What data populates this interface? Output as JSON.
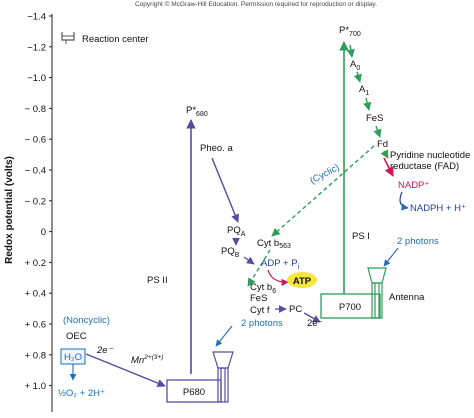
{
  "copyright": "Copyright © McGraw-Hill Education. Permission required for reproduction or display.",
  "legend": {
    "icon": "reaction-center-icon",
    "label": "Reaction center"
  },
  "axis": {
    "title": "Redox potential (volts)",
    "ticks": [
      "−1.4",
      "−1.2",
      "−1.0",
      "− 0.8",
      "− 0.6",
      "− 0.4",
      "− 0.2",
      "0",
      "+ 0.2",
      "+ 0.4",
      "+ 0.6",
      "+ 0.8",
      "+ 1.0"
    ]
  },
  "photosystems": {
    "ps2": {
      "label": "PS II",
      "center": "P680",
      "excited_main": "P*",
      "excited_sub": "680",
      "photons": "2 photons"
    },
    "ps1": {
      "label": "PS I",
      "center": "P700",
      "excited_main": "P*",
      "excited_sub": "700",
      "photons": "2 photons",
      "antenna": "Antenna"
    }
  },
  "carriers": {
    "pheo_a": "Pheo. a",
    "pqa_main": "PQ",
    "pqa_sub": "A",
    "pqb_main": "PQ",
    "pqb_sub": "B",
    "cyt_b563_main": "Cyt b",
    "cyt_b563_sub": "563",
    "cyt_b6_main": "Cyt b",
    "cyt_b6_sub": "6",
    "fes_1": "FeS",
    "cyt_f": "Cyt f",
    "pc": "PC",
    "two_e_1": "2e⁻",
    "a0_main": "A",
    "a0_sub": "0",
    "a1_main": "A",
    "a1_sub": "1",
    "fes_2": "FeS",
    "fd": "Fd",
    "fnr_line1": "Pyridine nucleotide",
    "fnr_line2": "reductase (FAD)",
    "cyclic": "(Cyclic)",
    "noncyclic": "(Noncyclic)",
    "oec": "OEC",
    "two_e_2": "2e⁻",
    "mn_main": "Mn",
    "mn_sup": "2+(3+)"
  },
  "molecules": {
    "adp": "ADP + P",
    "adp_sub": "i",
    "atp": "ATP",
    "nadp": "NADP⁺",
    "nadph": "NADPH + H⁺",
    "h2o": "H₂O",
    "o2": "½O₂ + 2H⁺"
  },
  "colors": {
    "ps_box": "#2e9d57",
    "ps_arrow": "#6a5aa8",
    "dashed": "#2e9d57",
    "fnr_arrow": "#d4145a",
    "blue_text": "#1f6fb5",
    "atp_fill": "#f5e63b"
  }
}
